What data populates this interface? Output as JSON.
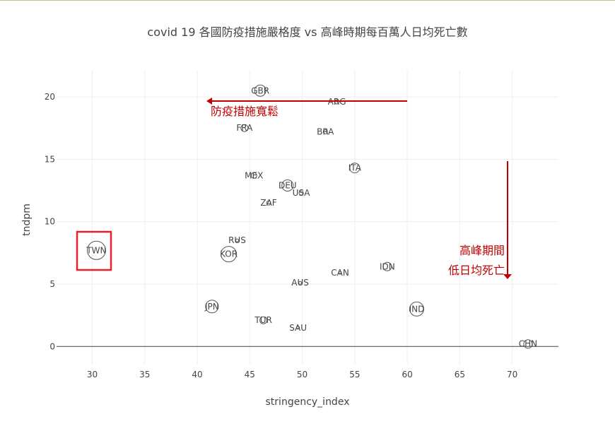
{
  "chart_data": {
    "type": "scatter",
    "title": "covid 19 各國防疫措施嚴格度 vs 高峰時期每百萬人日均死亡數",
    "xlabel": "stringency_index",
    "ylabel": "tndpm",
    "xlim": [
      26.6,
      74.4
    ],
    "ylim": [
      -1.4,
      22.1
    ],
    "xticks": [
      30,
      35,
      40,
      45,
      50,
      55,
      60,
      65,
      70
    ],
    "yticks": [
      0,
      5,
      10,
      15,
      20
    ],
    "grid": true,
    "legend": "none",
    "points": [
      {
        "label": "GBR",
        "x": 46.0,
        "y": 20.5,
        "size": 8
      },
      {
        "label": "ARG",
        "x": 53.3,
        "y": 19.6,
        "size": 3
      },
      {
        "label": "FRA",
        "x": 44.5,
        "y": 17.5,
        "size": 5
      },
      {
        "label": "BRA",
        "x": 52.2,
        "y": 17.2,
        "size": 3
      },
      {
        "label": "ITA",
        "x": 55.0,
        "y": 14.3,
        "size": 7
      },
      {
        "label": "MEX",
        "x": 45.4,
        "y": 13.7,
        "size": 4
      },
      {
        "label": "DEU",
        "x": 48.6,
        "y": 12.9,
        "size": 8
      },
      {
        "label": "USA",
        "x": 49.9,
        "y": 12.3,
        "size": 3
      },
      {
        "label": "ZAF",
        "x": 46.8,
        "y": 11.5,
        "size": 3
      },
      {
        "label": "RUS",
        "x": 43.8,
        "y": 8.5,
        "size": 2
      },
      {
        "label": "KOR",
        "x": 43.0,
        "y": 7.4,
        "size": 11
      },
      {
        "label": "TWN",
        "x": 30.4,
        "y": 7.7,
        "size": 13
      },
      {
        "label": "IDN",
        "x": 58.1,
        "y": 6.4,
        "size": 6
      },
      {
        "label": "CAN",
        "x": 53.6,
        "y": 5.9,
        "size": 2
      },
      {
        "label": "AUS",
        "x": 49.8,
        "y": 5.1,
        "size": 2
      },
      {
        "label": "TUR",
        "x": 46.3,
        "y": 2.1,
        "size": 5
      },
      {
        "label": "IND",
        "x": 60.9,
        "y": 3.0,
        "size": 10
      },
      {
        "label": "JPN",
        "x": 41.4,
        "y": 3.2,
        "size": 9
      },
      {
        "label": "SAU",
        "x": 49.6,
        "y": 1.5,
        "size": 2
      },
      {
        "label": "CHN",
        "x": 71.5,
        "y": 0.2,
        "size": 6
      }
    ],
    "annotations": {
      "arrow_left_text": "防疫措施寬鬆",
      "arrow_down_text_line1": "高峰期間",
      "arrow_down_text_line2": "低日均死亡",
      "highlight": "TWN",
      "annotation_color": "#c00000"
    },
    "colors": {
      "marker_stroke": "#555555",
      "grid": "#eeeeee",
      "text": "#444444",
      "highlight_box": "#e8202a"
    }
  }
}
